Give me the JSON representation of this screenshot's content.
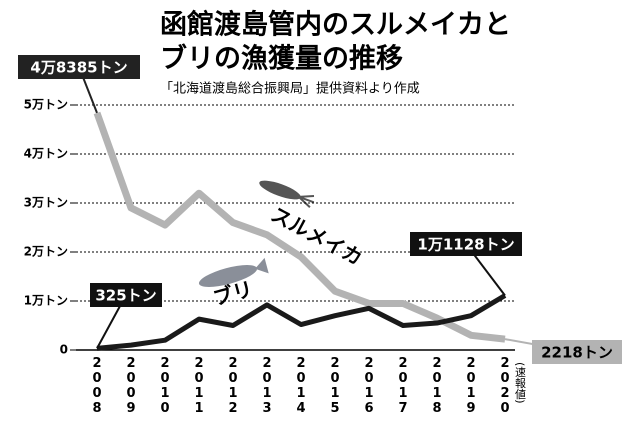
{
  "chart_data": {
    "type": "line",
    "title_lines": [
      "函館渡島管内のスルメイカと",
      "ブリの漁獲量の推移"
    ],
    "subtitle": "「北海道渡島総合振興局」提供資料より作成",
    "categories": [
      "2008",
      "2009",
      "2010",
      "2011",
      "2012",
      "2013",
      "2014",
      "2015",
      "2016",
      "2017",
      "2018",
      "2019",
      "2020"
    ],
    "last_category_note": "(速報値)",
    "ylim": [
      0,
      50000
    ],
    "yticks": [
      0,
      {
        "value": 10000,
        "label": "1万トン"
      },
      {
        "value": 20000,
        "label": "2万トン"
      },
      {
        "value": 30000,
        "label": "3万トン"
      },
      {
        "value": 40000,
        "label": "4万トン"
      },
      {
        "value": 50000,
        "label": "5万トン"
      }
    ],
    "grid": true,
    "series": [
      {
        "name": "スルメイカ",
        "color": "#b3b3b3",
        "values": [
          48385,
          29000,
          25500,
          32000,
          26000,
          23500,
          19000,
          12000,
          9500,
          9500,
          6500,
          3000,
          2218
        ],
        "value_labels": [
          "4万8385トン",
          null,
          null,
          null,
          null,
          null,
          null,
          null,
          null,
          null,
          null,
          null,
          "2218トン"
        ]
      },
      {
        "name": "ブリ",
        "color": "#1a1a1a",
        "values": [
          325,
          1000,
          2000,
          6300,
          5000,
          9200,
          5200,
          7000,
          8500,
          5000,
          5500,
          7000,
          11128
        ],
        "value_labels": [
          "325トン",
          null,
          null,
          null,
          null,
          null,
          null,
          null,
          null,
          null,
          null,
          null,
          "1万1128トン"
        ]
      }
    ]
  }
}
